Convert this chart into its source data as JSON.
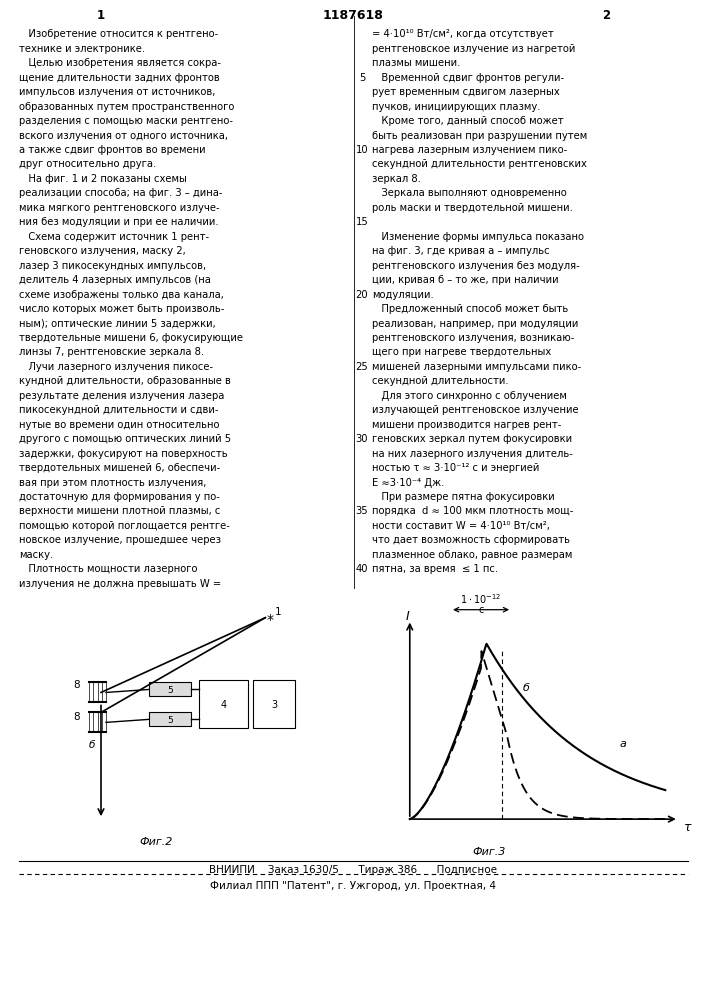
{
  "bg_color": "#ffffff",
  "page_width": 7.07,
  "page_height": 10.0,
  "header_number": "1187618",
  "col1_number": "1",
  "col2_number": "2",
  "text_col1": [
    "   Изобретение относится к рентгено-",
    "технике и электронике.",
    "   Целью изобретения является сокра-",
    "щение длительности задних фронтов",
    "импульсов излучения от источников,",
    "образованных путем пространственного",
    "разделения с помощью маски рентгено-",
    "вского излучения от одного источника,",
    "а также сдвиг фронтов во времени",
    "друг относительно друга.",
    "   На фиг. 1 и 2 показаны схемы",
    "реализации способа; на фиг. 3 – дина-",
    "мика мягкого рентгеновского излуче-",
    "ния без модуляции и при ее наличии.",
    "   Схема содержит источник 1 рент-",
    "геновского излучения, маску 2,",
    "лазер 3 пикосекундных импульсов,",
    "делитель 4 лазерных импульсов (на",
    "схеме изображены только два канала,",
    "число которых может быть произволь-",
    "ным); оптические линии 5 задержки,",
    "твердотельные мишени 6, фокусирующие",
    "линзы 7, рентгеновские зеркала 8.",
    "   Лучи лазерного излучения пикосе-",
    "кундной длительности, образованные в",
    "результате деления излучения лазера",
    "пикосекундной длительности и сдви-",
    "нутые во времени один относительно",
    "другого с помощью оптических линий 5",
    "задержки, фокусируют на поверхность",
    "твердотельных мишеней 6, обеспечи-",
    "вая при этом плотность излучения,",
    "достаточную для формирования у по-",
    "верхности мишени плотной плазмы, с",
    "помощью которой поглощается рентге-",
    "новское излучение, прошедшее через",
    "маску.",
    "   Плотность мощности лазерного",
    "излучения не должна превышать W ="
  ],
  "text_col2": [
    "= 4·10¹⁰ Вт/см², когда отсутствует",
    "рентгеновское излучение из нагретой",
    "плазмы мишени.",
    "   Временной сдвиг фронтов регули-",
    "рует временным сдвигом лазерных",
    "пучков, инициирующих плазму.",
    "   Кроме того, данный способ может",
    "быть реализован при разрушении путем",
    "нагрева лазерным излучением пико-",
    "секундной длительности рентгеновских",
    "зеркал 8.",
    "   Зеркала выполняют одновременно",
    "роль маски и твердотельной мишени.",
    "",
    "   Изменение формы импульса показано",
    "на фиг. 3, где кривая а – импульс",
    "рентгеновского излучения без модуля-",
    "ции, кривая б – то же, при наличии",
    "модуляции.",
    "   Предложенный способ может быть",
    "реализован, например, при модуляции",
    "рентгеновского излучения, возникаю-",
    "щего при нагреве твердотельных",
    "мишеней лазерными импульсами пико-",
    "секундной длительности.",
    "   Для этого синхронно с облучением",
    "излучающей рентгеновское излучение",
    "мишени производится нагрев рент-",
    "геновских зеркал путем фокусировки",
    "на них лазерного излучения длитель-",
    "ностью τ ≈ 3·10⁻¹² с и энергией",
    "Е ≈3·10⁻⁴ Дж.",
    "   При размере пятна фокусировки",
    "порядка  d ≈ 100 мкм плотность мощ-",
    "ности составит W = 4·10¹⁰ Вт/см²,",
    "что дает возможность сформировать",
    "плазменное облако, равное размерам",
    "пятна, за время  ≤ 1 пс."
  ],
  "line_number_rows": [
    3,
    8,
    13,
    18,
    23,
    28,
    33,
    37
  ],
  "line_number_vals": [
    5,
    10,
    15,
    20,
    25,
    30,
    35,
    40
  ],
  "footer_vniiipi": "ВНИИПИ    Заказ 1630/5      Тираж 386      Подписное",
  "footer_filial": "Филиал ППП \"Патент\", г. Ужгород, ул. Проектная, 4",
  "fig2_label": "Фиг.2",
  "fig3_label": "Фиг.3"
}
